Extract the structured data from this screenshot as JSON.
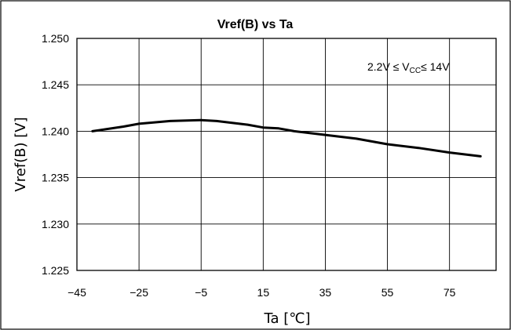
{
  "chart_data": {
    "type": "line",
    "title": "Vref(B) vs Ta",
    "xlabel": "Ta [℃]",
    "ylabel": "Vref(B) [V]",
    "xlim": [
      -45,
      90
    ],
    "ylim": [
      1.225,
      1.25
    ],
    "xticks": [
      "-45",
      "-25",
      "-5",
      "15",
      "35",
      "55",
      "75"
    ],
    "yticks": [
      "1.225",
      "1.230",
      "1.235",
      "1.240",
      "1.245",
      "1.250"
    ],
    "grid": true,
    "annotation": {
      "prefix": "2.2V ≤ V",
      "subscript": "CC",
      "suffix": "≤ 14V"
    },
    "series": [
      {
        "x": [
          -40,
          -30,
          -25,
          -15,
          -5,
          0,
          10,
          15,
          20,
          25,
          35,
          45,
          55,
          65,
          75,
          85
        ],
        "y": [
          1.24,
          1.2405,
          1.2408,
          1.2411,
          1.2412,
          1.2411,
          1.2407,
          1.2404,
          1.2403,
          1.24,
          1.2396,
          1.2392,
          1.2386,
          1.2382,
          1.2377,
          1.2373
        ]
      }
    ]
  },
  "colors": {
    "line": "#000000",
    "grid": "#000000",
    "frame": "#000000"
  }
}
